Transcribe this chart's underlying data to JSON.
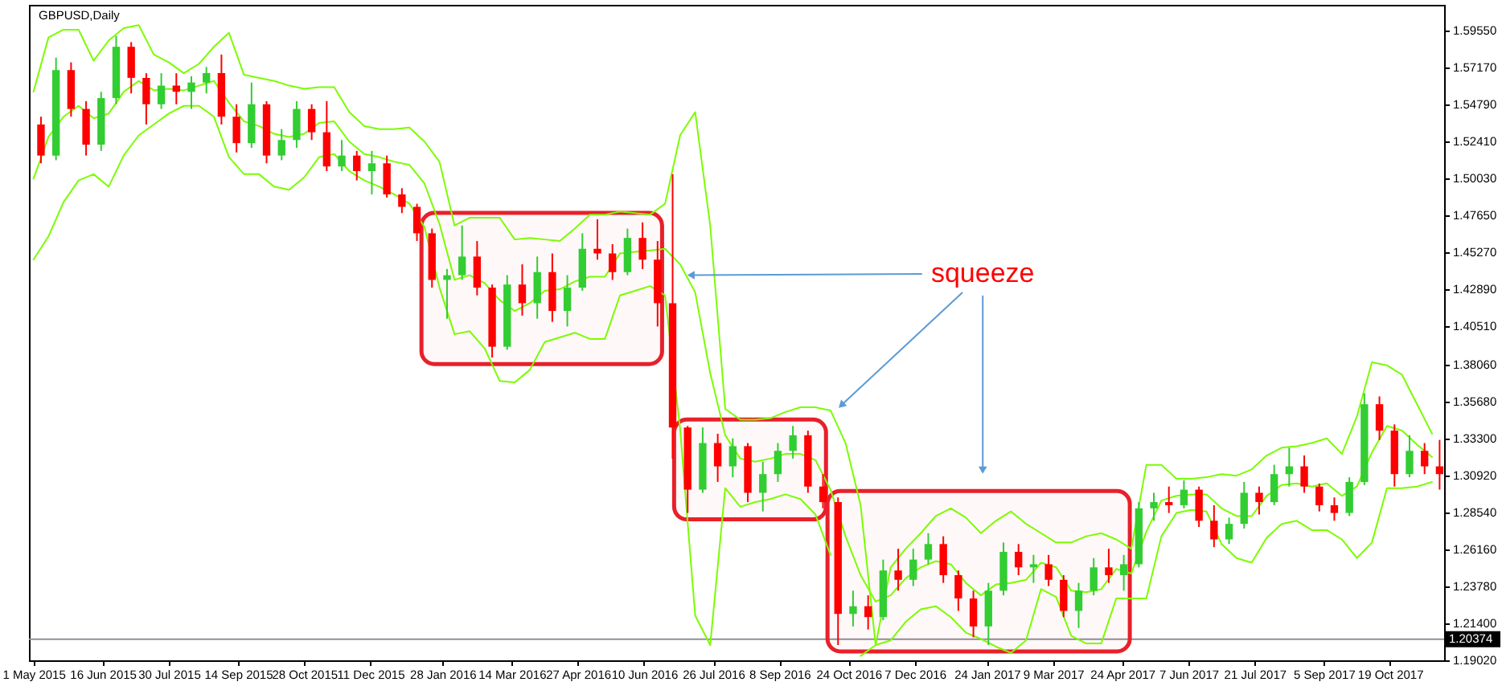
{
  "chart_data": {
    "type": "candlestick",
    "title": "GBPUSD,Daily",
    "x": [
      "2015-05-01",
      "2015-05-11",
      "2015-05-21",
      "2015-05-31",
      "2015-06-10",
      "2015-06-20",
      "2015-06-30",
      "2015-07-10",
      "2015-07-20",
      "2015-07-30",
      "2015-08-09",
      "2015-08-19",
      "2015-08-29",
      "2015-09-08",
      "2015-09-18",
      "2015-09-28",
      "2015-10-08",
      "2015-10-18",
      "2015-10-28",
      "2015-11-07",
      "2015-11-17",
      "2015-11-27",
      "2015-12-07",
      "2015-12-17",
      "2015-12-27",
      "2016-01-06",
      "2016-01-16",
      "2016-01-26",
      "2016-02-05",
      "2016-02-15",
      "2016-02-25",
      "2016-03-06",
      "2016-03-16",
      "2016-03-26",
      "2016-04-05",
      "2016-04-15",
      "2016-04-25",
      "2016-05-05",
      "2016-05-15",
      "2016-05-25",
      "2016-06-04",
      "2016-06-14",
      "2016-06-24",
      "2016-07-04",
      "2016-07-14",
      "2016-07-24",
      "2016-08-03",
      "2016-08-13",
      "2016-08-23",
      "2016-09-02",
      "2016-09-12",
      "2016-09-22",
      "2016-10-02",
      "2016-10-12",
      "2016-10-22",
      "2016-11-01",
      "2016-11-11",
      "2016-11-21",
      "2016-12-01",
      "2016-12-11",
      "2016-12-21",
      "2016-12-31",
      "2017-01-10",
      "2017-01-20",
      "2017-01-30",
      "2017-02-09",
      "2017-02-19",
      "2017-03-01",
      "2017-03-11",
      "2017-03-21",
      "2017-03-31",
      "2017-04-10",
      "2017-04-20",
      "2017-04-30",
      "2017-05-10",
      "2017-05-20",
      "2017-05-30",
      "2017-06-09",
      "2017-06-19",
      "2017-06-29",
      "2017-07-09",
      "2017-07-19",
      "2017-07-29",
      "2017-08-08",
      "2017-08-18",
      "2017-08-28",
      "2017-09-07",
      "2017-09-17",
      "2017-09-27",
      "2017-10-07",
      "2017-10-17",
      "2017-10-27",
      "2017-11-06",
      "2017-11-16"
    ],
    "series": [
      {
        "x": [
          "2015-05-06",
          "2015-05-16",
          "2015-05-26",
          "2015-06-05",
          "2015-06-15",
          "2015-06-25",
          "2015-07-05",
          "2015-07-15",
          "2015-07-25",
          "2015-08-04",
          "2015-08-14",
          "2015-08-24",
          "2015-09-03",
          "2015-09-13",
          "2015-09-23",
          "2015-10-03",
          "2015-10-13",
          "2015-10-23",
          "2015-11-02",
          "2015-11-12",
          "2015-11-22",
          "2015-12-02",
          "2015-12-12",
          "2015-12-22",
          "2016-01-01",
          "2016-01-11",
          "2016-01-21",
          "2016-01-31",
          "2016-02-10",
          "2016-02-20",
          "2016-03-01",
          "2016-03-11",
          "2016-03-21",
          "2016-03-31",
          "2016-04-10",
          "2016-04-20",
          "2016-04-30",
          "2016-05-10",
          "2016-05-20",
          "2016-05-30",
          "2016-06-09",
          "2016-06-19",
          "2016-06-29",
          "2016-07-09",
          "2016-07-19",
          "2016-07-29",
          "2016-08-08",
          "2016-08-18",
          "2016-08-28",
          "2016-09-07",
          "2016-09-17",
          "2016-09-27",
          "2016-10-07",
          "2016-10-17",
          "2016-10-27",
          "2016-11-06",
          "2016-11-16",
          "2016-11-26",
          "2016-12-06",
          "2016-12-16",
          "2016-12-26",
          "2017-01-05",
          "2017-01-15",
          "2017-01-25",
          "2017-02-04",
          "2017-02-14",
          "2017-02-24",
          "2017-03-06",
          "2017-03-16",
          "2017-03-26",
          "2017-04-05",
          "2017-04-15",
          "2017-04-25",
          "2017-05-05",
          "2017-05-15",
          "2017-05-25",
          "2017-06-04",
          "2017-06-14",
          "2017-06-24",
          "2017-07-04",
          "2017-07-14",
          "2017-07-24",
          "2017-08-03",
          "2017-08-13",
          "2017-08-23",
          "2017-09-02",
          "2017-09-12",
          "2017-09-22",
          "2017-10-02",
          "2017-10-12",
          "2017-10-22",
          "2017-11-01",
          "2017-11-11",
          "2017-11-21"
        ],
        "ohlc": [
          [
            1.535,
            1.54,
            1.51,
            1.515
          ],
          [
            1.515,
            1.578,
            1.512,
            1.57
          ],
          [
            1.57,
            1.575,
            1.54,
            1.545
          ],
          [
            1.545,
            1.55,
            1.515,
            1.522
          ],
          [
            1.522,
            1.556,
            1.518,
            1.552
          ],
          [
            1.552,
            1.592,
            1.548,
            1.585
          ],
          [
            1.585,
            1.588,
            1.555,
            1.565
          ],
          [
            1.565,
            1.568,
            1.535,
            1.548
          ],
          [
            1.548,
            1.568,
            1.545,
            1.56
          ],
          [
            1.56,
            1.568,
            1.548,
            1.556
          ],
          [
            1.556,
            1.566,
            1.545,
            1.562
          ],
          [
            1.562,
            1.572,
            1.555,
            1.568
          ],
          [
            1.568,
            1.58,
            1.535,
            1.54
          ],
          [
            1.54,
            1.548,
            1.517,
            1.523
          ],
          [
            1.523,
            1.562,
            1.52,
            1.548
          ],
          [
            1.548,
            1.55,
            1.51,
            1.515
          ],
          [
            1.515,
            1.532,
            1.512,
            1.525
          ],
          [
            1.525,
            1.55,
            1.52,
            1.545
          ],
          [
            1.545,
            1.548,
            1.525,
            1.53
          ],
          [
            1.53,
            1.55,
            1.505,
            1.508
          ],
          [
            1.508,
            1.525,
            1.505,
            1.515
          ],
          [
            1.515,
            1.518,
            1.499,
            1.505
          ],
          [
            1.505,
            1.518,
            1.49,
            1.51
          ],
          [
            1.51,
            1.515,
            1.488,
            1.49
          ],
          [
            1.49,
            1.494,
            1.478,
            1.482
          ],
          [
            1.482,
            1.484,
            1.46,
            1.465
          ],
          [
            1.465,
            1.468,
            1.43,
            1.435
          ],
          [
            1.435,
            1.442,
            1.41,
            1.438
          ],
          [
            1.438,
            1.47,
            1.435,
            1.45
          ],
          [
            1.45,
            1.46,
            1.425,
            1.43
          ],
          [
            1.43,
            1.432,
            1.385,
            1.392
          ],
          [
            1.392,
            1.438,
            1.39,
            1.432
          ],
          [
            1.432,
            1.445,
            1.412,
            1.42
          ],
          [
            1.42,
            1.45,
            1.41,
            1.44
          ],
          [
            1.44,
            1.452,
            1.408,
            1.415
          ],
          [
            1.415,
            1.438,
            1.405,
            1.43
          ],
          [
            1.43,
            1.465,
            1.428,
            1.455
          ],
          [
            1.455,
            1.474,
            1.448,
            1.452
          ],
          [
            1.452,
            1.458,
            1.435,
            1.44
          ],
          [
            1.44,
            1.468,
            1.438,
            1.462
          ],
          [
            1.462,
            1.472,
            1.442,
            1.448
          ],
          [
            1.448,
            1.46,
            1.405,
            1.42
          ],
          [
            1.42,
            1.503,
            1.32,
            1.34
          ],
          [
            1.34,
            1.341,
            1.285,
            1.3
          ],
          [
            1.3,
            1.34,
            1.298,
            1.33
          ],
          [
            1.33,
            1.336,
            1.305,
            1.315
          ],
          [
            1.315,
            1.333,
            1.308,
            1.328
          ],
          [
            1.328,
            1.33,
            1.292,
            1.298
          ],
          [
            1.298,
            1.318,
            1.286,
            1.31
          ],
          [
            1.31,
            1.33,
            1.305,
            1.325
          ],
          [
            1.325,
            1.341,
            1.32,
            1.335
          ],
          [
            1.335,
            1.338,
            1.298,
            1.302
          ],
          [
            1.302,
            1.31,
            1.288,
            1.292
          ],
          [
            1.292,
            1.295,
            1.2,
            1.22
          ],
          [
            1.22,
            1.235,
            1.212,
            1.225
          ],
          [
            1.225,
            1.232,
            1.21,
            1.218
          ],
          [
            1.218,
            1.255,
            1.216,
            1.248
          ],
          [
            1.248,
            1.262,
            1.235,
            1.242
          ],
          [
            1.242,
            1.262,
            1.238,
            1.255
          ],
          [
            1.255,
            1.272,
            1.252,
            1.265
          ],
          [
            1.265,
            1.27,
            1.24,
            1.245
          ],
          [
            1.245,
            1.248,
            1.222,
            1.23
          ],
          [
            1.23,
            1.235,
            1.205,
            1.212
          ],
          [
            1.212,
            1.24,
            1.2,
            1.235
          ],
          [
            1.235,
            1.266,
            1.232,
            1.26
          ],
          [
            1.26,
            1.265,
            1.245,
            1.25
          ],
          [
            1.25,
            1.258,
            1.24,
            1.252
          ],
          [
            1.252,
            1.258,
            1.238,
            1.242
          ],
          [
            1.242,
            1.245,
            1.218,
            1.222
          ],
          [
            1.222,
            1.24,
            1.211,
            1.235
          ],
          [
            1.235,
            1.256,
            1.232,
            1.25
          ],
          [
            1.25,
            1.262,
            1.24,
            1.245
          ],
          [
            1.245,
            1.258,
            1.235,
            1.252
          ],
          [
            1.252,
            1.292,
            1.25,
            1.288
          ],
          [
            1.288,
            1.298,
            1.28,
            1.292
          ],
          [
            1.292,
            1.302,
            1.285,
            1.29
          ],
          [
            1.29,
            1.306,
            1.288,
            1.3
          ],
          [
            1.3,
            1.302,
            1.276,
            1.28
          ],
          [
            1.28,
            1.29,
            1.263,
            1.268
          ],
          [
            1.268,
            1.282,
            1.265,
            1.278
          ],
          [
            1.278,
            1.305,
            1.275,
            1.298
          ],
          [
            1.298,
            1.302,
            1.284,
            1.292
          ],
          [
            1.292,
            1.316,
            1.29,
            1.31
          ],
          [
            1.31,
            1.327,
            1.302,
            1.315
          ],
          [
            1.315,
            1.322,
            1.298,
            1.302
          ],
          [
            1.302,
            1.304,
            1.286,
            1.29
          ],
          [
            1.29,
            1.295,
            1.28,
            1.285
          ],
          [
            1.285,
            1.308,
            1.283,
            1.305
          ],
          [
            1.305,
            1.362,
            1.303,
            1.355
          ],
          [
            1.355,
            1.36,
            1.332,
            1.338
          ],
          [
            1.338,
            1.342,
            1.302,
            1.31
          ],
          [
            1.31,
            1.335,
            1.308,
            1.325
          ],
          [
            1.325,
            1.33,
            1.31,
            1.315
          ],
          [
            1.315,
            1.332,
            1.3,
            1.31
          ]
        ],
        "colors": [
          "#ff0000",
          "#32cd32",
          "#ff0000",
          "#ff0000",
          "#32cd32",
          "#32cd32",
          "#ff0000",
          "#ff0000",
          "#32cd32",
          "#ff0000",
          "#32cd32",
          "#32cd32",
          "#ff0000",
          "#ff0000",
          "#32cd32",
          "#ff0000",
          "#32cd32",
          "#32cd32",
          "#ff0000",
          "#ff0000",
          "#32cd32",
          "#ff0000",
          "#32cd32",
          "#ff0000",
          "#ff0000",
          "#ff0000",
          "#ff0000",
          "#32cd32",
          "#32cd32",
          "#ff0000",
          "#ff0000",
          "#32cd32",
          "#ff0000",
          "#32cd32",
          "#ff0000",
          "#32cd32",
          "#32cd32",
          "#ff0000",
          "#ff0000",
          "#32cd32",
          "#ff0000",
          "#ff0000",
          "#ff0000",
          "#ff0000",
          "#32cd32",
          "#ff0000",
          "#32cd32",
          "#ff0000",
          "#32cd32",
          "#32cd32",
          "#32cd32",
          "#ff0000",
          "#ff0000",
          "#ff0000",
          "#32cd32",
          "#ff0000",
          "#32cd32",
          "#ff0000",
          "#32cd32",
          "#32cd32",
          "#ff0000",
          "#ff0000",
          "#ff0000",
          "#32cd32",
          "#32cd32",
          "#ff0000",
          "#32cd32",
          "#ff0000",
          "#ff0000",
          "#32cd32",
          "#32cd32",
          "#ff0000",
          "#32cd32",
          "#32cd32",
          "#32cd32",
          "#ff0000",
          "#32cd32",
          "#ff0000",
          "#ff0000",
          "#32cd32",
          "#32cd32",
          "#ff0000",
          "#32cd32",
          "#32cd32",
          "#ff0000",
          "#ff0000",
          "#ff0000",
          "#32cd32",
          "#32cd32",
          "#ff0000",
          "#ff0000",
          "#32cd32",
          "#ff0000",
          "#ff0000"
        ]
      },
      {
        "type": "line",
        "color": "#7cfc00",
        "values": [
          1.556,
          1.591,
          1.596,
          1.596,
          1.576,
          1.589,
          1.597,
          1.599,
          1.58,
          1.575,
          1.568,
          1.574,
          1.585,
          1.594,
          1.567,
          1.565,
          1.563,
          1.56,
          1.558,
          1.559,
          1.559,
          1.543,
          1.534,
          1.532,
          1.532,
          1.533,
          1.524,
          1.511,
          1.47,
          1.475,
          1.475,
          1.475,
          1.461,
          1.462,
          1.461,
          1.46,
          1.468,
          1.477,
          1.477,
          1.479,
          1.478,
          1.477,
          1.484,
          1.528,
          1.543,
          1.47,
          1.352,
          1.345,
          1.345,
          1.346,
          1.35,
          1.353,
          1.353,
          1.351,
          1.33,
          1.29,
          1.2,
          1.25,
          1.262,
          1.272,
          1.283,
          1.288,
          1.282,
          1.272,
          1.28,
          1.286,
          1.278,
          1.272,
          1.266,
          1.266,
          1.27,
          1.272,
          1.268,
          1.262,
          1.316,
          1.316,
          1.307,
          1.307,
          1.308,
          1.31,
          1.309,
          1.313,
          1.322,
          1.327,
          1.328,
          1.33,
          1.333,
          1.323,
          1.347,
          1.382,
          1.38,
          1.374,
          1.355,
          1.336
        ]
      },
      {
        "type": "line",
        "color": "#7cfc00",
        "values": [
          1.5,
          1.527,
          1.54,
          1.547,
          1.539,
          1.542,
          1.556,
          1.563,
          1.557,
          1.558,
          1.557,
          1.56,
          1.563,
          1.549,
          1.537,
          1.534,
          1.529,
          1.527,
          1.529,
          1.536,
          1.537,
          1.524,
          1.516,
          1.514,
          1.511,
          1.509,
          1.497,
          1.471,
          1.435,
          1.438,
          1.433,
          1.422,
          1.415,
          1.42,
          1.428,
          1.429,
          1.434,
          1.437,
          1.437,
          1.452,
          1.453,
          1.454,
          1.455,
          1.445,
          1.427,
          1.375,
          1.335,
          1.32,
          1.318,
          1.32,
          1.323,
          1.323,
          1.319,
          1.3,
          1.27,
          1.245,
          1.228,
          1.232,
          1.243,
          1.25,
          1.254,
          1.252,
          1.24,
          1.232,
          1.239,
          1.24,
          1.242,
          1.253,
          1.25,
          1.235,
          1.234,
          1.236,
          1.249,
          1.246,
          1.273,
          1.293,
          1.296,
          1.297,
          1.297,
          1.288,
          1.283,
          1.283,
          1.296,
          1.303,
          1.304,
          1.302,
          1.304,
          1.296,
          1.302,
          1.324,
          1.341,
          1.338,
          1.329,
          1.321
        ]
      },
      {
        "type": "line",
        "color": "#7cfc00",
        "values": [
          1.448,
          1.463,
          1.485,
          1.499,
          1.503,
          1.495,
          1.515,
          1.528,
          1.535,
          1.542,
          1.547,
          1.547,
          1.54,
          1.514,
          1.503,
          1.503,
          1.495,
          1.493,
          1.501,
          1.514,
          1.516,
          1.505,
          1.499,
          1.495,
          1.49,
          1.484,
          1.469,
          1.43,
          1.4,
          1.402,
          1.391,
          1.37,
          1.369,
          1.377,
          1.395,
          1.398,
          1.401,
          1.397,
          1.397,
          1.425,
          1.428,
          1.431,
          1.425,
          1.339,
          1.219,
          1.2,
          1.301,
          1.289,
          1.292,
          1.294,
          1.297,
          1.294,
          1.284,
          1.258,
          null,
          1.193,
          1.2,
          1.203,
          1.215,
          1.223,
          1.225,
          1.218,
          1.208,
          1.204,
          1.199,
          1.195,
          1.203,
          1.236,
          1.231,
          1.206,
          1.201,
          1.201,
          1.23,
          1.23,
          1.23,
          1.27,
          1.285,
          1.287,
          1.286,
          1.265,
          1.256,
          1.253,
          1.269,
          1.278,
          1.28,
          1.274,
          1.274,
          1.268,
          1.256,
          1.266,
          1.301,
          1.301,
          1.302,
          1.305
        ]
      }
    ],
    "xlim": [
      "2015-04-28",
      "2017-11-24"
    ],
    "ylim": [
      1.1902,
      1.612
    ],
    "xticks": [
      {
        "value": "2015-05-01",
        "label": "1 May 2015"
      },
      {
        "value": "2015-06-16",
        "label": "16 Jun 2015"
      },
      {
        "value": "2015-07-30",
        "label": "30 Jul 2015"
      },
      {
        "value": "2015-09-14",
        "label": "14 Sep 2015"
      },
      {
        "value": "2015-10-28",
        "label": "28 Oct 2015"
      },
      {
        "value": "2015-12-11",
        "label": "11 Dec 2015"
      },
      {
        "value": "2016-01-28",
        "label": "28 Jan 2016"
      },
      {
        "value": "2016-03-14",
        "label": "14 Mar 2016"
      },
      {
        "value": "2016-04-27",
        "label": "27 Apr 2016"
      },
      {
        "value": "2016-06-10",
        "label": "10 Jun 2016"
      },
      {
        "value": "2016-07-26",
        "label": "26 Jul 2016"
      },
      {
        "value": "2016-09-08",
        "label": "8 Sep 2016"
      },
      {
        "value": "2016-10-24",
        "label": "24 Oct 2016"
      },
      {
        "value": "2016-12-07",
        "label": "7 Dec 2016"
      },
      {
        "value": "2017-01-24",
        "label": "24 Jan 2017"
      },
      {
        "value": "2017-03-09",
        "label": "9 Mar 2017"
      },
      {
        "value": "2017-04-24",
        "label": "24 Apr 2017"
      },
      {
        "value": "2017-06-07",
        "label": "7 Jun 2017"
      },
      {
        "value": "2017-07-21",
        "label": "21 Jul 2017"
      },
      {
        "value": "2017-09-05",
        "label": "5 Sep 2017"
      },
      {
        "value": "2017-10-19",
        "label": "19 Oct 2017"
      }
    ],
    "yticks": [
      {
        "value": 1.5955,
        "label": "1.59550"
      },
      {
        "value": 1.5717,
        "label": "1.57170"
      },
      {
        "value": 1.5479,
        "label": "1.54790"
      },
      {
        "value": 1.5241,
        "label": "1.52410"
      },
      {
        "value": 1.5003,
        "label": "1.50030"
      },
      {
        "value": 1.4765,
        "label": "1.47650"
      },
      {
        "value": 1.4527,
        "label": "1.45270"
      },
      {
        "value": 1.4289,
        "label": "1.42890"
      },
      {
        "value": 1.4051,
        "label": "1.40510"
      },
      {
        "value": 1.3806,
        "label": "1.38060"
      },
      {
        "value": 1.3568,
        "label": "1.35680"
      },
      {
        "value": 1.333,
        "label": "1.33300"
      },
      {
        "value": 1.3092,
        "label": "1.30920"
      },
      {
        "value": 1.2854,
        "label": "1.28540"
      },
      {
        "value": 1.2616,
        "label": "1.26160"
      },
      {
        "value": 1.2378,
        "label": "1.23780"
      },
      {
        "value": 1.214,
        "label": "1.21400"
      },
      {
        "value": 1.1902,
        "label": "1.19020"
      }
    ],
    "ref_lines": [
      {
        "axis": "y",
        "value": 1.20374,
        "label": "1.20374",
        "color": "#8c9099"
      }
    ],
    "bands": [
      {
        "axis": "x",
        "from": "2016-01-14",
        "to": "2016-06-22",
        "color": "#e8202a"
      },
      {
        "axis": "x",
        "from": "2016-06-30",
        "to": "2016-10-09",
        "color": "#e8202a"
      },
      {
        "axis": "x",
        "from": "2016-10-10",
        "to": "2017-04-29",
        "color": "#e8202a"
      }
    ],
    "annotations": [
      {
        "text": "squeeze",
        "x": "2016-07-08",
        "y": 1.438
      }
    ],
    "grid": false
  }
}
